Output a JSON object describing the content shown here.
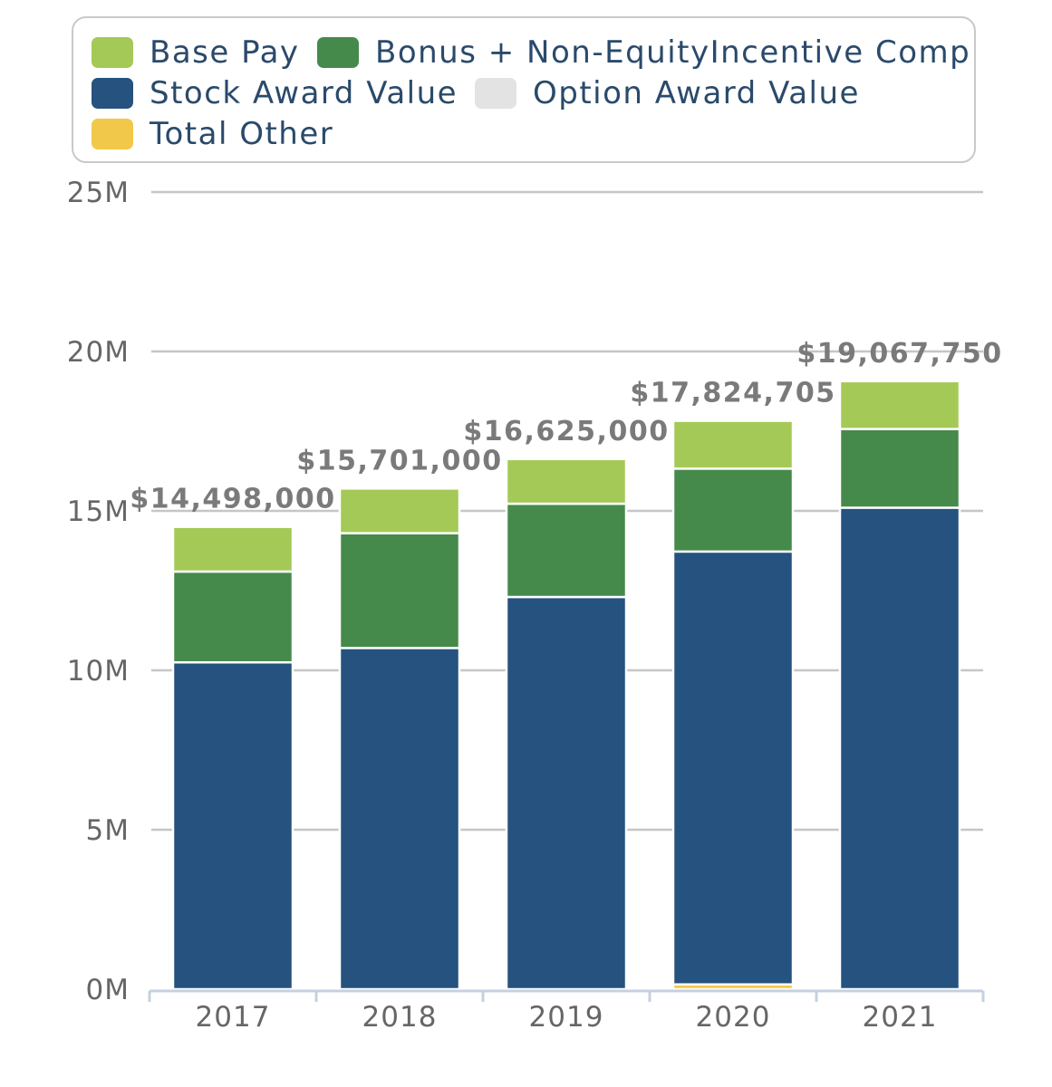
{
  "chart_data": {
    "type": "bar",
    "stacked": true,
    "categories": [
      "2017",
      "2018",
      "2019",
      "2020",
      "2021"
    ],
    "series": [
      {
        "name": "Total Other",
        "color": "#f2c84b",
        "values": [
          0,
          0,
          0,
          150000,
          0
        ]
      },
      {
        "name": "Stock Award Value",
        "color": "#25527e",
        "values": [
          10250000,
          10700000,
          12300000,
          13575000,
          15100000
        ]
      },
      {
        "name": "Option Award Value",
        "color": "#e3e3e3",
        "values": [
          0,
          0,
          0,
          0,
          0
        ]
      },
      {
        "name": "Bonus + Non-EquityIncentive Comp",
        "color": "#468a4b",
        "values": [
          2848000,
          3601000,
          2925000,
          2600000,
          2467750
        ]
      },
      {
        "name": "Base Pay",
        "color": "#a4c957",
        "values": [
          1400000,
          1400000,
          1400000,
          1499705,
          1500000
        ]
      }
    ],
    "totals": [
      "$14,498,000",
      "$15,701,000",
      "$16,625,000",
      "$17,824,705",
      "$19,067,750"
    ],
    "yticks": [
      "0M",
      "5M",
      "10M",
      "15M",
      "20M",
      "25M"
    ],
    "ylim": [
      0,
      25000000
    ],
    "legend": [
      {
        "name": "Base Pay",
        "color": "#a4c957"
      },
      {
        "name": "Bonus + Non-EquityIncentive Comp",
        "color": "#468a4b"
      },
      {
        "name": "Stock Award Value",
        "color": "#25527e"
      },
      {
        "name": "Option Award Value",
        "color": "#e3e3e3"
      },
      {
        "name": "Total Other",
        "color": "#f2c84b"
      }
    ],
    "legend_position": "top",
    "grid": true
  }
}
